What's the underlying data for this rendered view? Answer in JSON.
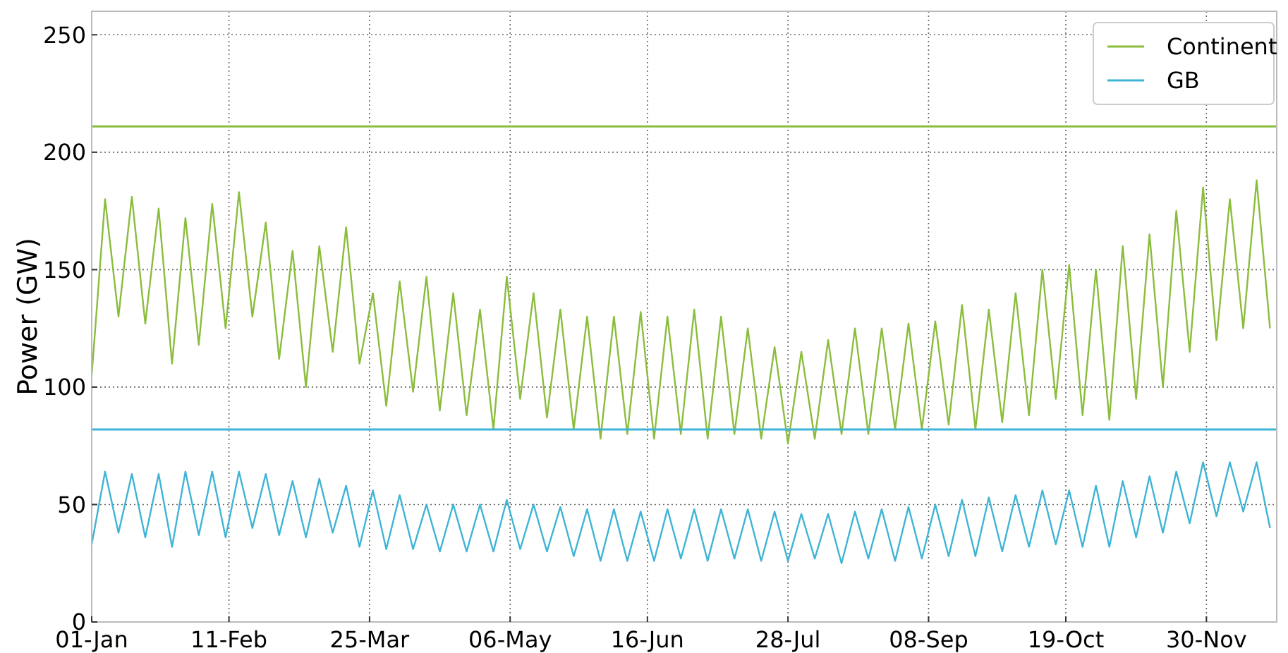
{
  "chart_data": {
    "type": "line",
    "ylabel": "Power (GW)",
    "x": [
      "--01-01",
      "--01-05",
      "--01-09",
      "--01-13",
      "--01-17",
      "--01-21",
      "--01-25",
      "--01-29",
      "--02-02",
      "--02-06",
      "--02-10",
      "--02-14",
      "--02-18",
      "--02-22",
      "--02-26",
      "--03-02",
      "--03-06",
      "--03-10",
      "--03-14",
      "--03-18",
      "--03-22",
      "--03-26",
      "--03-30",
      "--04-03",
      "--04-07",
      "--04-11",
      "--04-15",
      "--04-19",
      "--04-23",
      "--04-27",
      "--05-01",
      "--05-05",
      "--05-09",
      "--05-13",
      "--05-17",
      "--05-21",
      "--05-25",
      "--05-29",
      "--06-02",
      "--06-06",
      "--06-10",
      "--06-14",
      "--06-18",
      "--06-22",
      "--06-26",
      "--06-30",
      "--07-04",
      "--07-08",
      "--07-12",
      "--07-16",
      "--07-20",
      "--07-24",
      "--07-28",
      "--08-01",
      "--08-05",
      "--08-09",
      "--08-13",
      "--08-17",
      "--08-21",
      "--08-25",
      "--08-29",
      "--09-02",
      "--09-06",
      "--09-10",
      "--09-14",
      "--09-18",
      "--09-22",
      "--09-26",
      "--09-30",
      "--10-04",
      "--10-08",
      "--10-12",
      "--10-16",
      "--10-20",
      "--10-24",
      "--10-28",
      "--11-01",
      "--11-05",
      "--11-09",
      "--11-13",
      "--11-17",
      "--11-21",
      "--11-25",
      "--11-29",
      "--12-03",
      "--12-07",
      "--12-11",
      "--12-15",
      "--12-19"
    ],
    "series": [
      {
        "name": "Continent",
        "color": "#8bbd3c",
        "values": [
          105,
          180,
          130,
          181,
          127,
          176,
          110,
          172,
          118,
          178,
          125,
          183,
          130,
          170,
          112,
          158,
          100,
          160,
          115,
          168,
          110,
          140,
          92,
          145,
          98,
          147,
          90,
          140,
          88,
          133,
          82,
          147,
          95,
          140,
          87,
          133,
          82,
          130,
          78,
          130,
          80,
          132,
          78,
          130,
          80,
          133,
          78,
          130,
          80,
          125,
          78,
          117,
          76,
          115,
          78,
          120,
          80,
          125,
          80,
          125,
          82,
          127,
          82,
          128,
          84,
          135,
          82,
          133,
          85,
          140,
          88,
          150,
          95,
          152,
          88,
          150,
          86,
          160,
          95,
          165,
          100,
          175,
          115,
          185,
          120,
          180,
          125,
          188,
          125
        ]
      },
      {
        "name": "GB",
        "color": "#3fb4d6",
        "values": [
          33,
          64,
          38,
          63,
          36,
          63,
          32,
          64,
          37,
          64,
          36,
          64,
          40,
          63,
          37,
          60,
          36,
          61,
          38,
          58,
          32,
          56,
          31,
          54,
          31,
          50,
          30,
          50,
          30,
          50,
          30,
          52,
          31,
          50,
          30,
          49,
          28,
          48,
          26,
          48,
          26,
          47,
          26,
          48,
          27,
          48,
          26,
          48,
          27,
          48,
          26,
          47,
          26,
          46,
          27,
          46,
          25,
          47,
          27,
          48,
          26,
          49,
          27,
          50,
          28,
          52,
          28,
          53,
          30,
          54,
          32,
          56,
          33,
          56,
          32,
          58,
          32,
          60,
          36,
          62,
          38,
          64,
          42,
          68,
          45,
          68,
          47,
          68,
          40
        ]
      }
    ],
    "xlim": [
      "--01-01",
      "--12-21"
    ],
    "xticks": [
      {
        "value": "--01-01",
        "label": "01-Jan"
      },
      {
        "value": "--02-11",
        "label": "11-Feb"
      },
      {
        "value": "--03-25",
        "label": "25-Mar"
      },
      {
        "value": "--05-06",
        "label": "06-May"
      },
      {
        "value": "--06-16",
        "label": "16-Jun"
      },
      {
        "value": "--07-28",
        "label": "28-Jul"
      },
      {
        "value": "--09-08",
        "label": "08-Sep"
      },
      {
        "value": "--10-19",
        "label": "19-Oct"
      },
      {
        "value": "--11-30",
        "label": "30-Nov"
      }
    ],
    "ylim": [
      0,
      260
    ],
    "yticks": [
      0,
      50,
      100,
      150,
      200,
      250
    ],
    "ref_lines": [
      {
        "axis": "y",
        "value": 211,
        "color": "#8bbd3c"
      },
      {
        "axis": "y",
        "value": 82,
        "color": "#3fb4d6"
      }
    ],
    "grid": true,
    "legend": "top right",
    "line_style": "solid"
  }
}
